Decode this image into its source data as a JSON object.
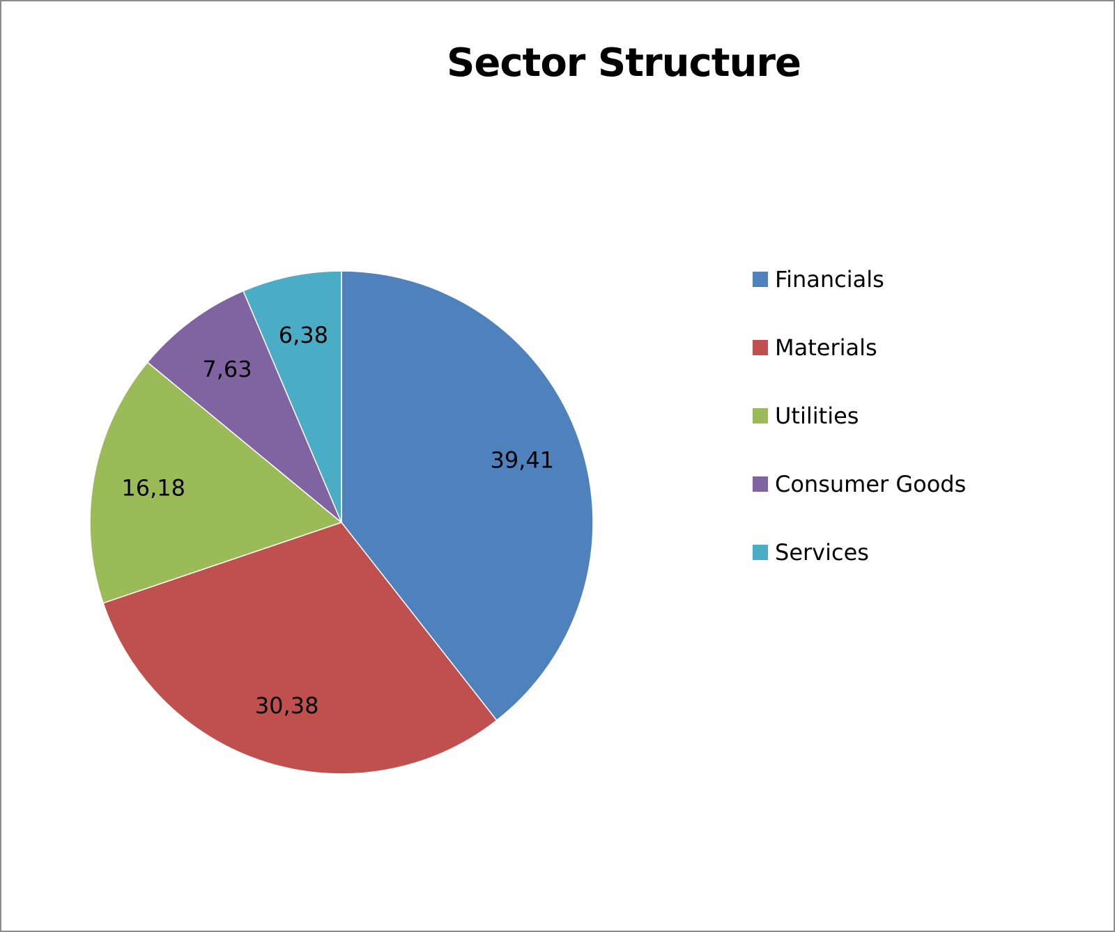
{
  "chart_data": {
    "type": "pie",
    "title": "Sector Structure",
    "categories": [
      "Financials",
      "Materials",
      "Utilities",
      "Consumer Goods",
      "Services"
    ],
    "values": [
      39.41,
      30.38,
      16.18,
      7.63,
      6.38
    ],
    "value_labels": [
      "39,41",
      "30,38",
      "16,18",
      "7,63",
      "6,38"
    ],
    "colors": [
      "#4f81bd",
      "#c0504d",
      "#9bbb59",
      "#8064a2",
      "#4bacc6"
    ],
    "start_angle": "12 o'clock",
    "direction": "clockwise",
    "legend_position": "right"
  }
}
